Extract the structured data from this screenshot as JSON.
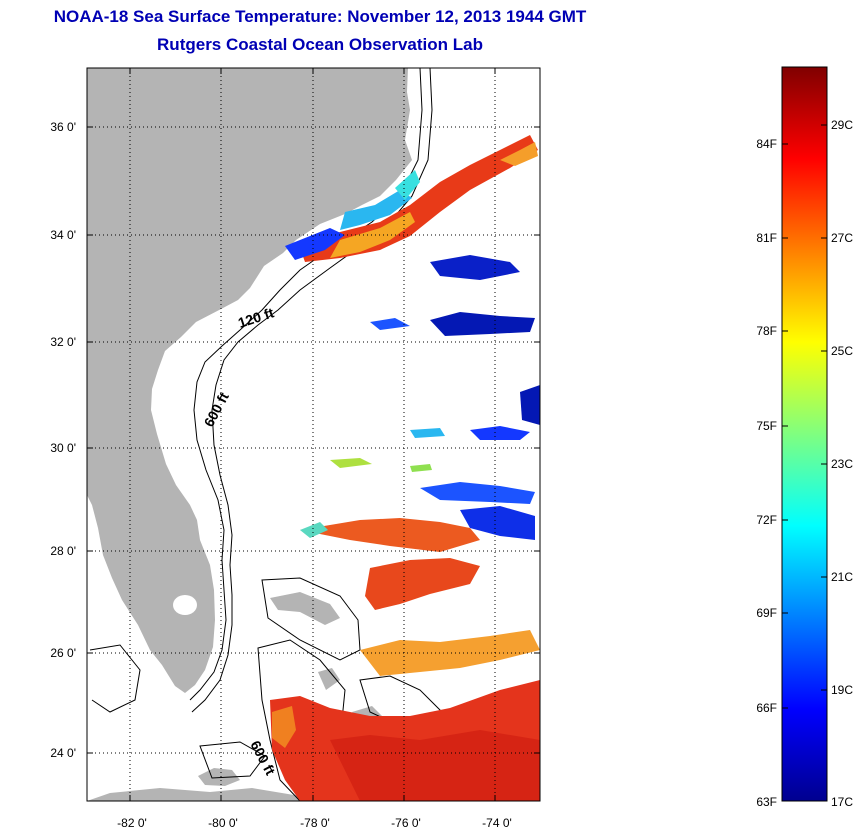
{
  "title": "NOAA-18 Sea Surface Temperature:  November 12, 2013 1944 GMT",
  "subtitle": "Rutgers Coastal Ocean Observation Lab",
  "map": {
    "lon_range": [
      -83,
      -73
    ],
    "lat_range": [
      23,
      37.2
    ],
    "lat_ticks": [
      "36 0'",
      "34 0'",
      "32 0'",
      "30 0'",
      "28 0'",
      "26 0'",
      "24 0'"
    ],
    "lon_ticks": [
      "-82 0'",
      "-80 0'",
      "-78 0'",
      "-76 0'",
      "-74 0'"
    ],
    "isobath_labels": [
      "120 ft",
      "600 ft",
      "600 ft"
    ],
    "land_color": "#b4b4b4"
  },
  "colorbar": {
    "fahrenheit_labels": [
      "84F",
      "81F",
      "78F",
      "75F",
      "72F",
      "69F",
      "66F",
      "63F"
    ],
    "celsius_labels": [
      "29C",
      "27C",
      "25C",
      "23C",
      "21C",
      "19C",
      "17C"
    ],
    "range_celsius": [
      17,
      30
    ],
    "colormap": "jet"
  }
}
